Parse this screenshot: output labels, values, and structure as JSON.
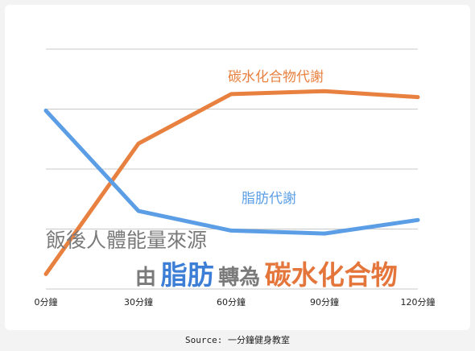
{
  "chart_data": {
    "type": "line",
    "categories": [
      "0分鐘",
      "30分鐘",
      "60分鐘",
      "90分鐘",
      "120分鐘"
    ],
    "series": [
      {
        "name": "碳水化合物代謝",
        "color": "#e8803f",
        "values": [
          0.5,
          4.85,
          6.5,
          6.6,
          6.4
        ]
      },
      {
        "name": "脂肪代謝",
        "color": "#5b9ee6",
        "values": [
          5.95,
          2.6,
          1.95,
          1.85,
          2.3
        ]
      }
    ],
    "ylim": [
      0,
      8
    ],
    "grid": true
  },
  "overlay": {
    "line1": "飯後人體能量來源",
    "line2_pre": "由",
    "highlight1": "脂肪",
    "line2_mid": "轉為",
    "highlight2": "碳水化合物",
    "colors": {
      "gray": "#7a7a7a",
      "blue": "#3d7fd6",
      "orange": "#e4753b"
    }
  },
  "source": "Source: 一分鐘健身教室"
}
